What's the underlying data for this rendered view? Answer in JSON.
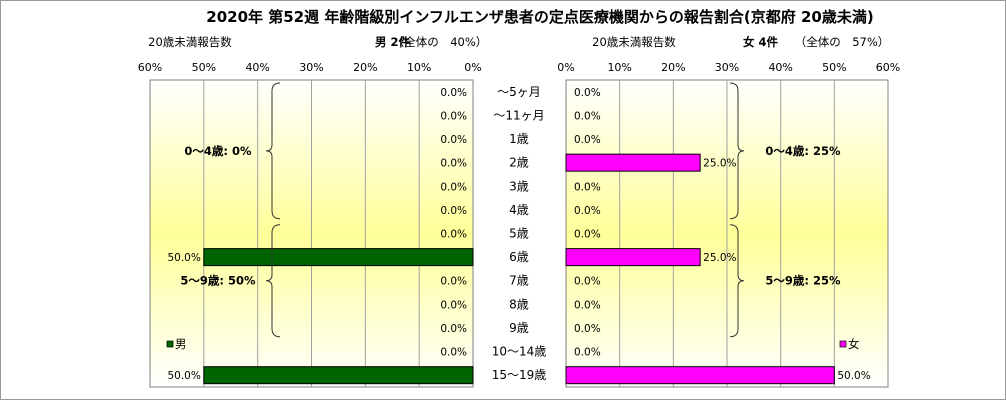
{
  "title": "2020年 第52週 年齢階級別インフルエンザ患者の定点医療機関からの報告割合(京都府 20歳未満)",
  "chart_data": {
    "type": "bar",
    "orientation": "horizontal-butterfly",
    "categories": [
      "～5ヶ月",
      "～11ヶ月",
      "1歳",
      "2歳",
      "3歳",
      "4歳",
      "5歳",
      "6歳",
      "7歳",
      "8歳",
      "9歳",
      "10～14歳",
      "15～19歳"
    ],
    "panels": [
      {
        "side": "left",
        "header_label": "20歳未満報告数",
        "header_count": "男 2件",
        "header_share": "（全体の　40%）",
        "legend": "男",
        "color": "#006400",
        "xlim": [
          0,
          60
        ],
        "ticks": [
          "60%",
          "50%",
          "40%",
          "30%",
          "20%",
          "10%",
          "0%"
        ],
        "tick_values": [
          60,
          50,
          40,
          30,
          20,
          10,
          0
        ],
        "series": [
          {
            "name": "男",
            "values": [
              0,
              0,
              0,
              0,
              0,
              0,
              0,
              50,
              0,
              0,
              0,
              0,
              50
            ]
          }
        ],
        "labels": [
          "0.0%",
          "0.0%",
          "0.0%",
          "0.0%",
          "0.0%",
          "0.0%",
          "0.0%",
          "50.0%",
          "0.0%",
          "0.0%",
          "0.0%",
          "0.0%",
          "50.0%"
        ],
        "groups": [
          {
            "label": "0～4歳: 0%",
            "from": 0,
            "to": 5
          },
          {
            "label": "5～9歳: 50%",
            "from": 6,
            "to": 10
          }
        ]
      },
      {
        "side": "right",
        "header_label": "20歳未満報告数",
        "header_count": "女 4件",
        "header_share": "（全体の　57%）",
        "legend": "女",
        "color": "#ff00ff",
        "xlim": [
          0,
          60
        ],
        "ticks": [
          "0%",
          "10%",
          "20%",
          "30%",
          "40%",
          "50%",
          "60%"
        ],
        "tick_values": [
          0,
          10,
          20,
          30,
          40,
          50,
          60
        ],
        "series": [
          {
            "name": "女",
            "values": [
              0,
              0,
              0,
              25,
              0,
              0,
              0,
              25,
              0,
              0,
              0,
              0,
              50
            ]
          }
        ],
        "labels": [
          "0.0%",
          "0.0%",
          "0.0%",
          "25.0%",
          "0.0%",
          "0.0%",
          "0.0%",
          "25.0%",
          "0.0%",
          "0.0%",
          "0.0%",
          "0.0%",
          "50.0%"
        ],
        "groups": [
          {
            "label": "0～4歳: 25%",
            "from": 0,
            "to": 5
          },
          {
            "label": "5～9歳: 25%",
            "from": 6,
            "to": 10
          }
        ]
      }
    ]
  }
}
